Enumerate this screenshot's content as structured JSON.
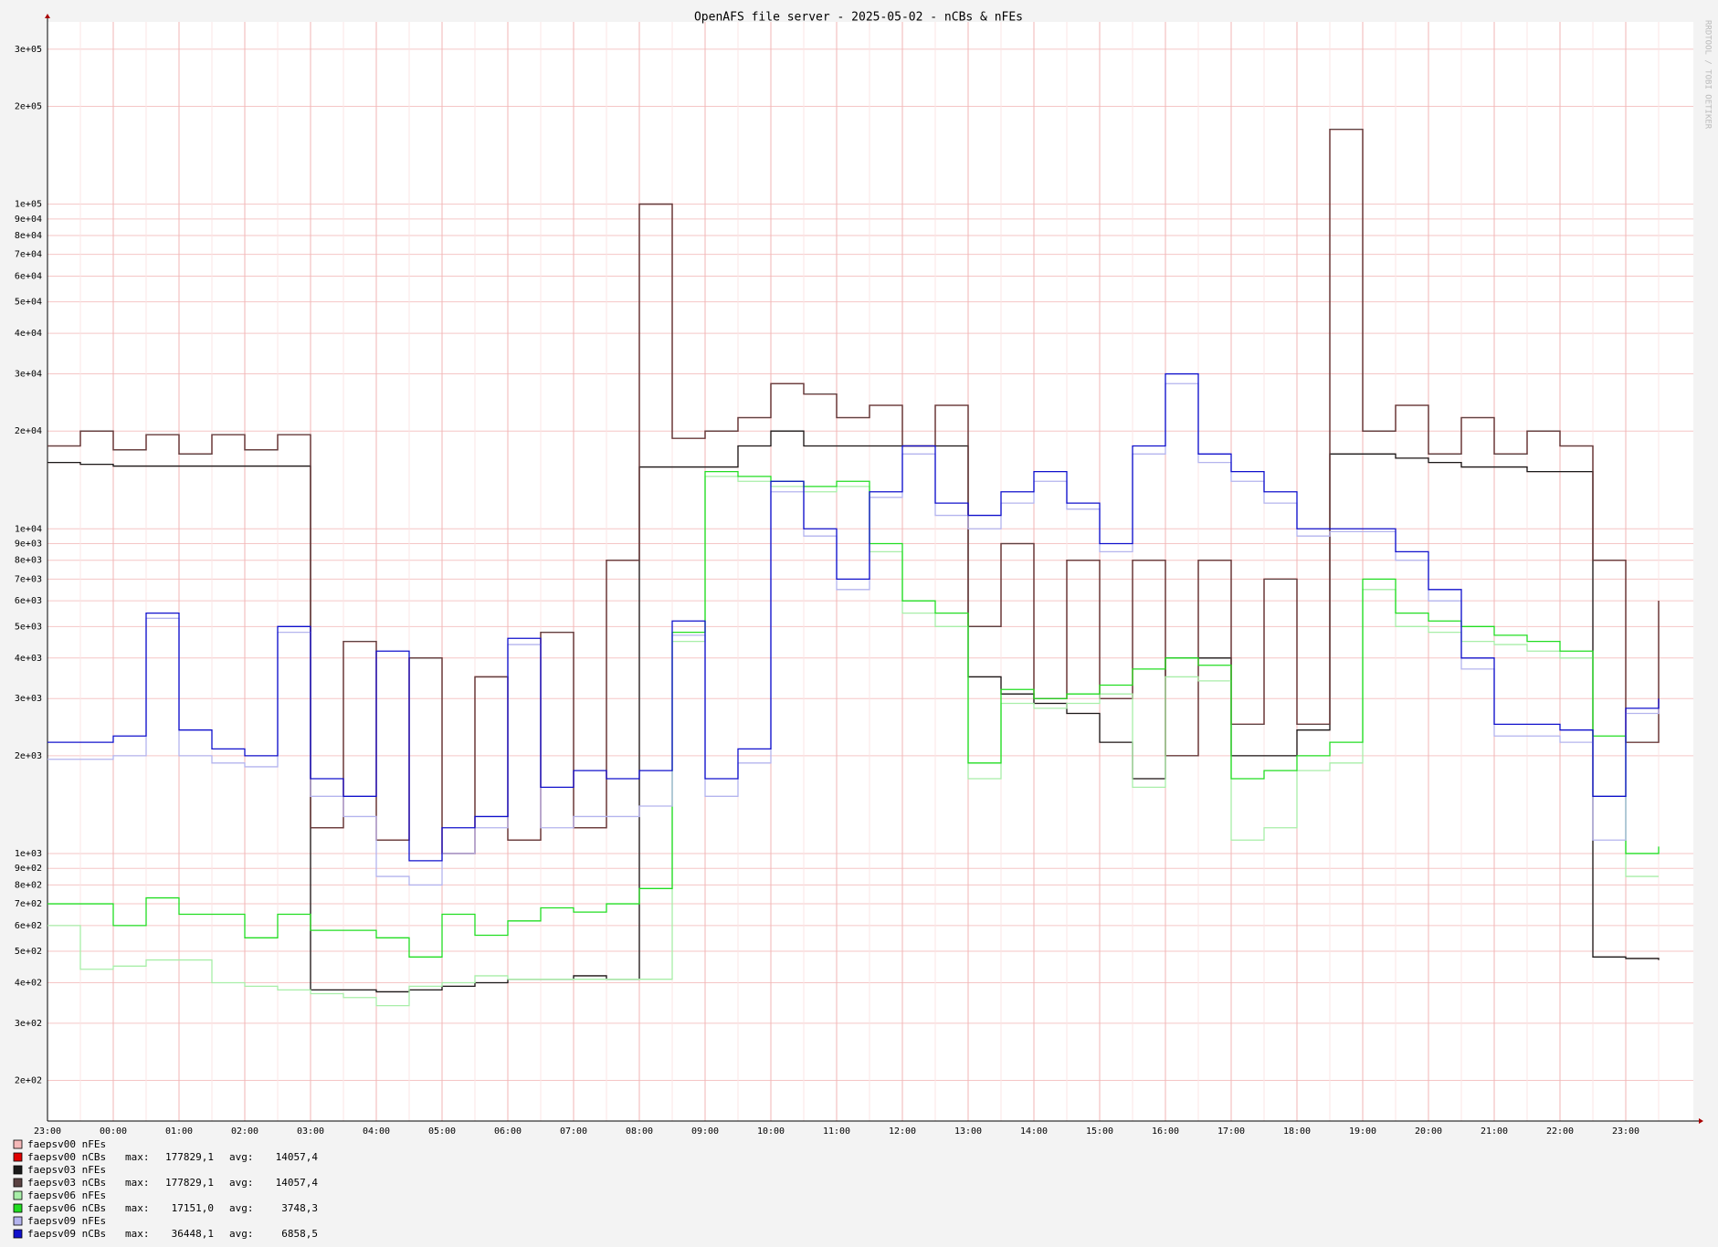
{
  "chart_data": {
    "type": "line",
    "title": "OpenAFS file server - 2025-05-02 - nCBs & nFEs",
    "watermark": "RRDTOOL / TOBI OETIKER",
    "log_scale": true,
    "grid": true,
    "x": [
      "23:00",
      "23:30",
      "00:00",
      "00:30",
      "01:00",
      "01:30",
      "02:00",
      "02:30",
      "03:00",
      "03:30",
      "04:00",
      "04:30",
      "05:00",
      "05:30",
      "06:00",
      "06:30",
      "07:00",
      "07:30",
      "08:00",
      "08:30",
      "09:00",
      "09:30",
      "10:00",
      "10:30",
      "11:00",
      "11:30",
      "12:00",
      "12:30",
      "13:00",
      "13:30",
      "14:00",
      "14:30",
      "15:00",
      "15:30",
      "16:00",
      "16:30",
      "17:00",
      "17:30",
      "18:00",
      "18:30",
      "19:00",
      "19:30",
      "20:00",
      "20:30",
      "21:00",
      "21:30",
      "22:00",
      "22:30",
      "23:00",
      "23:30"
    ],
    "ylim": [
      150,
      364000
    ],
    "yticks": [
      {
        "value": 200,
        "label": "2e+02"
      },
      {
        "value": 300,
        "label": "3e+02"
      },
      {
        "value": 400,
        "label": "4e+02"
      },
      {
        "value": 500,
        "label": "5e+02"
      },
      {
        "value": 600,
        "label": "6e+02"
      },
      {
        "value": 700,
        "label": "7e+02"
      },
      {
        "value": 800,
        "label": "8e+02"
      },
      {
        "value": 900,
        "label": "9e+02"
      },
      {
        "value": 1000,
        "label": "1e+03"
      },
      {
        "value": 2000,
        "label": "2e+03"
      },
      {
        "value": 3000,
        "label": "3e+03"
      },
      {
        "value": 4000,
        "label": "4e+03"
      },
      {
        "value": 5000,
        "label": "5e+03"
      },
      {
        "value": 6000,
        "label": "6e+03"
      },
      {
        "value": 7000,
        "label": "7e+03"
      },
      {
        "value": 8000,
        "label": "8e+03"
      },
      {
        "value": 9000,
        "label": "9e+03"
      },
      {
        "value": 10000,
        "label": "1e+04"
      },
      {
        "value": 20000,
        "label": "2e+04"
      },
      {
        "value": 30000,
        "label": "3e+04"
      },
      {
        "value": 40000,
        "label": "4e+04"
      },
      {
        "value": 50000,
        "label": "5e+04"
      },
      {
        "value": 60000,
        "label": "6e+04"
      },
      {
        "value": 70000,
        "label": "7e+04"
      },
      {
        "value": 80000,
        "label": "8e+04"
      },
      {
        "value": 90000,
        "label": "9e+04"
      },
      {
        "value": 100000,
        "label": "1e+05"
      },
      {
        "value": 200000,
        "label": "2e+05"
      },
      {
        "value": 300000,
        "label": "3e+05"
      }
    ],
    "legend_labels": {
      "max": "max:",
      "avg": "avg:"
    },
    "series": [
      {
        "name": "faepsv00 nFEs",
        "color": "#f4b8b8",
        "values": [
          16000,
          15800,
          15600,
          15600,
          15600,
          15600,
          15600,
          15600,
          380,
          380,
          375,
          380,
          390,
          400,
          410,
          410,
          420,
          410,
          15500,
          15500,
          15500,
          18000,
          20000,
          18000,
          18000,
          18000,
          18000,
          18000,
          3500,
          3100,
          2900,
          2700,
          2200,
          1700,
          4000,
          4000,
          2000,
          2000,
          2400,
          17000,
          17000,
          16500,
          16000,
          15500,
          15500,
          15000,
          15000,
          480,
          475,
          470
        ]
      },
      {
        "name": "faepsv00 nCBs",
        "color": "#e00000",
        "max": {
          "value": 177829.1,
          "label": "177829,1"
        },
        "avg": {
          "value": 14057.4,
          "label": "14057,4"
        },
        "values": [
          18000,
          20000,
          17500,
          19500,
          17000,
          19500,
          17500,
          19500,
          1200,
          4500,
          1100,
          4000,
          1000,
          3500,
          1100,
          4800,
          1200,
          8000,
          100000,
          19000,
          20000,
          22000,
          28000,
          26000,
          22000,
          24000,
          18000,
          24000,
          5000,
          9000,
          3000,
          8000,
          3000,
          8000,
          2000,
          8000,
          2500,
          7000,
          2500,
          170000,
          20000,
          24000,
          17000,
          22000,
          17000,
          20000,
          18000,
          8000,
          2200,
          6000
        ]
      },
      {
        "name": "faepsv03 nFEs",
        "color": "#1a1a1a",
        "values": [
          16000,
          15800,
          15600,
          15600,
          15600,
          15600,
          15600,
          15600,
          380,
          380,
          375,
          380,
          390,
          400,
          410,
          410,
          420,
          410,
          15500,
          15500,
          15500,
          18000,
          20000,
          18000,
          18000,
          18000,
          18000,
          18000,
          3500,
          3100,
          2900,
          2700,
          2200,
          1700,
          4000,
          4000,
          2000,
          2000,
          2400,
          17000,
          17000,
          16500,
          16000,
          15500,
          15500,
          15000,
          15000,
          480,
          475,
          470
        ]
      },
      {
        "name": "faepsv03 nCBs",
        "color": "#5a4242",
        "max": {
          "value": 177829.1,
          "label": "177829,1"
        },
        "avg": {
          "value": 14057.4,
          "label": "14057,4"
        },
        "values": [
          18000,
          20000,
          17500,
          19500,
          17000,
          19500,
          17500,
          19500,
          1200,
          4500,
          1100,
          4000,
          1000,
          3500,
          1100,
          4800,
          1200,
          8000,
          100000,
          19000,
          20000,
          22000,
          28000,
          26000,
          22000,
          24000,
          18000,
          24000,
          5000,
          9000,
          3000,
          8000,
          3000,
          8000,
          2000,
          8000,
          2500,
          7000,
          2500,
          170000,
          20000,
          24000,
          17000,
          22000,
          17000,
          20000,
          18000,
          8000,
          2200,
          6000
        ]
      },
      {
        "name": "faepsv06 nFEs",
        "color": "#a8eea8",
        "values": [
          600,
          440,
          450,
          470,
          470,
          400,
          390,
          380,
          370,
          360,
          340,
          390,
          400,
          420,
          410,
          410,
          410,
          410,
          410,
          4500,
          14500,
          14000,
          13500,
          13000,
          13500,
          8500,
          5500,
          5000,
          1700,
          2900,
          2800,
          2900,
          3100,
          1600,
          3500,
          3400,
          1100,
          1200,
          1800,
          1900,
          6500,
          5000,
          4800,
          4500,
          4400,
          4200,
          4000,
          1500,
          850,
          850
        ]
      },
      {
        "name": "faepsv06 nCBs",
        "color": "#22dd22",
        "max": {
          "value": 17151.0,
          "label": "17151,0"
        },
        "avg": {
          "value": 3748.3,
          "label": "3748,3"
        },
        "values": [
          700,
          700,
          600,
          730,
          650,
          650,
          550,
          650,
          580,
          580,
          550,
          480,
          650,
          560,
          620,
          680,
          660,
          700,
          780,
          4800,
          15000,
          14500,
          14000,
          13500,
          14000,
          9000,
          6000,
          5500,
          1900,
          3200,
          3000,
          3100,
          3300,
          3700,
          4000,
          3800,
          1700,
          1800,
          2000,
          2200,
          7000,
          5500,
          5200,
          5000,
          4700,
          4500,
          4200,
          2300,
          1000,
          1050
        ]
      },
      {
        "name": "faepsv09 nFEs",
        "color": "#b4b4ee",
        "values": [
          1950,
          1950,
          2000,
          5300,
          2000,
          1900,
          1850,
          4800,
          1500,
          1300,
          850,
          800,
          1000,
          1200,
          4400,
          1200,
          1300,
          1300,
          1400,
          4700,
          1500,
          1900,
          13000,
          9500,
          6500,
          12500,
          17000,
          11000,
          10000,
          12000,
          14000,
          11500,
          8500,
          17000,
          28000,
          16000,
          14000,
          12000,
          9500,
          9800,
          9800,
          8000,
          6000,
          3700,
          2300,
          2300,
          2200,
          1100,
          2700,
          2900
        ]
      },
      {
        "name": "faepsv09 nCBs",
        "color": "#1010cc",
        "max": {
          "value": 36448.1,
          "label": "36448,1"
        },
        "avg": {
          "value": 6858.5,
          "label": "6858,5"
        },
        "values": [
          2200,
          2200,
          2300,
          5500,
          2400,
          2100,
          2000,
          5000,
          1700,
          1500,
          4200,
          950,
          1200,
          1300,
          4600,
          1600,
          1800,
          1700,
          1800,
          5200,
          1700,
          2100,
          14000,
          10000,
          7000,
          13000,
          18000,
          12000,
          11000,
          13000,
          15000,
          12000,
          9000,
          18000,
          30000,
          17000,
          15000,
          13000,
          10000,
          10000,
          10000,
          8500,
          6500,
          4000,
          2500,
          2500,
          2400,
          1500,
          2800,
          3000
        ]
      }
    ]
  }
}
